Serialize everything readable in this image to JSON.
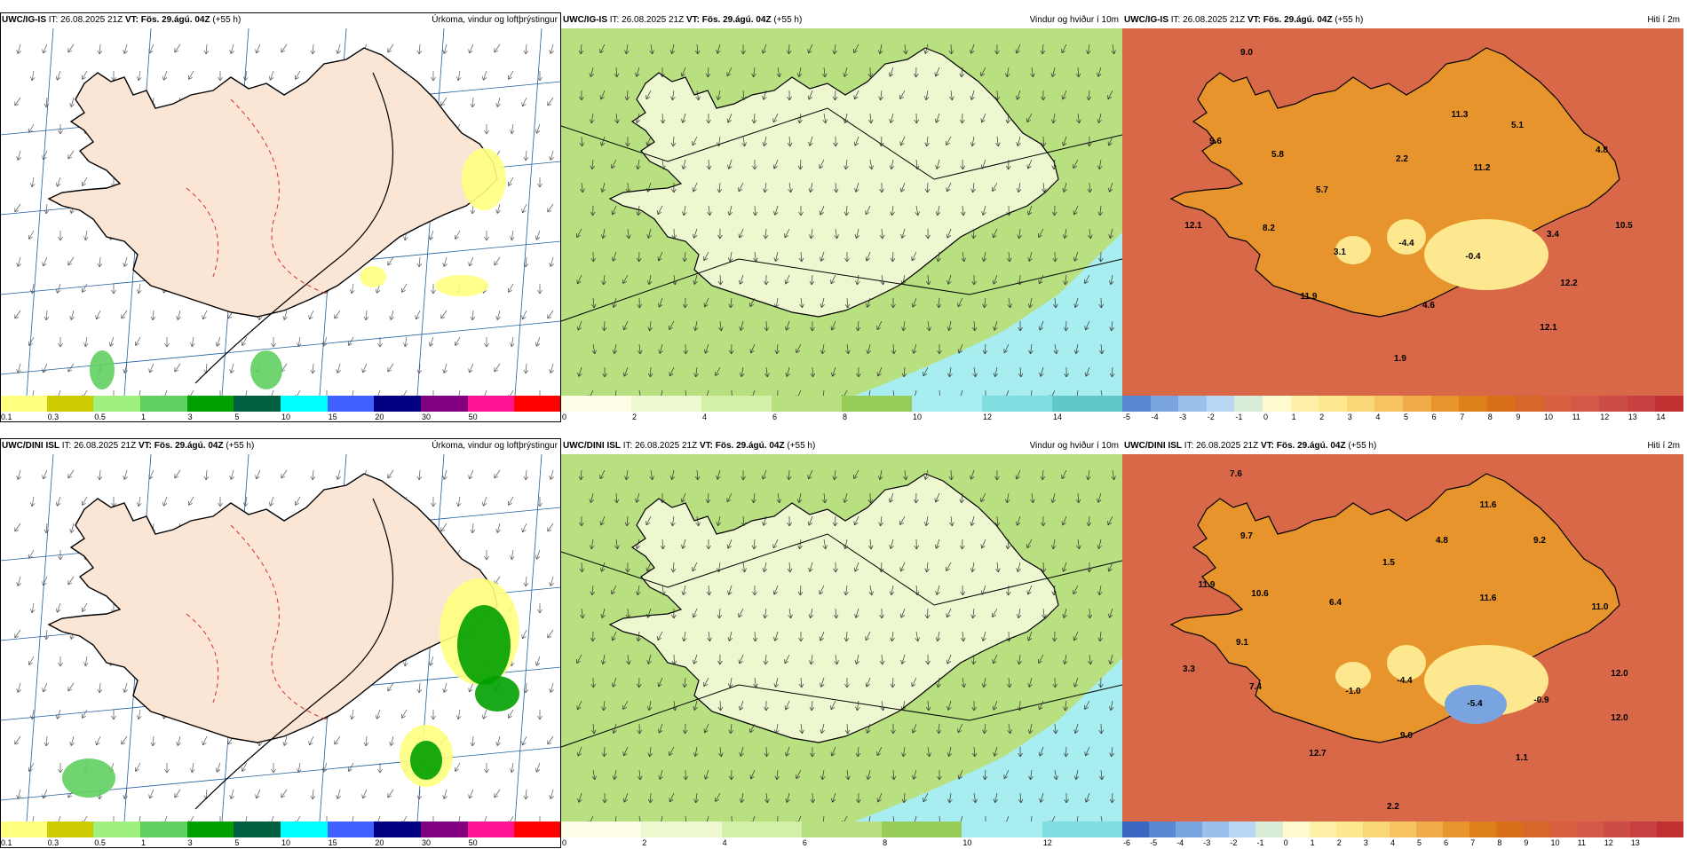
{
  "rows": [
    {
      "model": "UWC/IG-IS",
      "it_label": "IT:",
      "it_value": "26.08.2025 21Z",
      "vt_label": "VT:",
      "vt_value": "Fös. 29.ágú. 04Z",
      "lead": "(+55 h)",
      "panels": {
        "precip": {
          "title": "Úrkoma, vindur og loftþrýstingur"
        },
        "wind": {
          "title": "Vindur og hviður í 10m"
        },
        "temp": {
          "title": "Hiti í 2m",
          "labels": [
            "9.0",
            "11.3",
            "5.1",
            "9.6",
            "5.8",
            "2.2",
            "11.2",
            "4.8",
            "5.7",
            "12.1",
            "8.2",
            "3.1",
            "-4.4",
            "-0.4",
            "3.4",
            "10.5",
            "11.9",
            "4.6",
            "12.2",
            "12.1",
            "1.9"
          ]
        }
      }
    },
    {
      "model": "UWC/DINI ISL",
      "it_label": "IT:",
      "it_value": "26.08.2025 21Z",
      "vt_label": "VT:",
      "vt_value": "Fös. 29.ágú. 04Z",
      "lead": "(+55 h)",
      "panels": {
        "precip": {
          "title": "Úrkoma, vindur og loftþrýstingur"
        },
        "wind": {
          "title": "Vindur og hviður í 10m"
        },
        "temp": {
          "title": "Hiti í 2m",
          "labels": [
            "7.6",
            "11.6",
            "9.7",
            "4.8",
            "9.2",
            "1.5",
            "11.9",
            "10.6",
            "6.4",
            "11.6",
            "11.0",
            "9.1",
            "3.3",
            "7.4",
            "-1.0",
            "-4.4",
            "-5.4",
            "-0.9",
            "12.0",
            "12.0",
            "9.0",
            "12.7",
            "1.1",
            "2.2"
          ]
        }
      }
    }
  ],
  "scales": {
    "precip": {
      "ticks": [
        "0.1",
        "0.3",
        "0.5",
        "1",
        "3",
        "5",
        "10",
        "15",
        "20",
        "30",
        "50"
      ],
      "colors": [
        "#ffff80",
        "#cccc00",
        "#a0f080",
        "#60d060",
        "#00a000",
        "#006040",
        "#00ffff",
        "#4060ff",
        "#000080",
        "#800080",
        "#ff1493",
        "#ff0000"
      ]
    },
    "wind_top": {
      "ticks": [
        "0",
        "2",
        "4",
        "6",
        "8",
        "10",
        "12",
        "14"
      ],
      "colors": [
        "#fdfde8",
        "#eef8d0",
        "#d4efa8",
        "#b8e080",
        "#98cc58",
        "#a8eef0",
        "#80dde0",
        "#60c8c8"
      ]
    },
    "wind_bottom": {
      "ticks": [
        "0",
        "2",
        "4",
        "6",
        "8",
        "10",
        "12"
      ],
      "colors": [
        "#fdfde8",
        "#eef8d0",
        "#d4efa8",
        "#b8e080",
        "#98cc58",
        "#a8eef0",
        "#80dde0"
      ]
    },
    "temp_top": {
      "ticks": [
        "-5",
        "-4",
        "-3",
        "-2",
        "-1",
        "0",
        "1",
        "2",
        "3",
        "4",
        "5",
        "6",
        "7",
        "8",
        "9",
        "10",
        "11",
        "12",
        "13",
        "14"
      ],
      "colors": [
        "#5a88d0",
        "#7aa4e0",
        "#9ac0ec",
        "#b8d6f4",
        "#d8ecd8",
        "#fffad0",
        "#fff0a8",
        "#fde890",
        "#fad878",
        "#f6c460",
        "#f0ac48",
        "#e8942c",
        "#de8018",
        "#d8701a",
        "#d8682a",
        "#d86040",
        "#d45848",
        "#cc4c48",
        "#c84040",
        "#c03030"
      ]
    },
    "temp_bottom": {
      "ticks": [
        "-6",
        "-5",
        "-4",
        "-3",
        "-2",
        "-1",
        "0",
        "1",
        "2",
        "3",
        "4",
        "5",
        "6",
        "7",
        "8",
        "9",
        "10",
        "11",
        "12",
        "13"
      ],
      "colors": [
        "#3a68c0",
        "#5a88d0",
        "#7aa4e0",
        "#9ac0ec",
        "#b8d6f4",
        "#d8ecd8",
        "#fffad0",
        "#fff0a8",
        "#fde890",
        "#fad878",
        "#f6c460",
        "#f0ac48",
        "#e8942c",
        "#de8018",
        "#d8701a",
        "#d8682a",
        "#d86040",
        "#d45848",
        "#cc4c48",
        "#c84040",
        "#c03030"
      ]
    }
  },
  "colors": {
    "land_fill": "#fbe6d6",
    "ocean_fill": "#ffffff",
    "wind_land": "#eef8d0",
    "wind_sea": "#b8e080",
    "wind_gust": "#a8eef0",
    "temp_sea": "#d86848",
    "temp_land": "#e8942c",
    "temp_high": "#fde890"
  }
}
